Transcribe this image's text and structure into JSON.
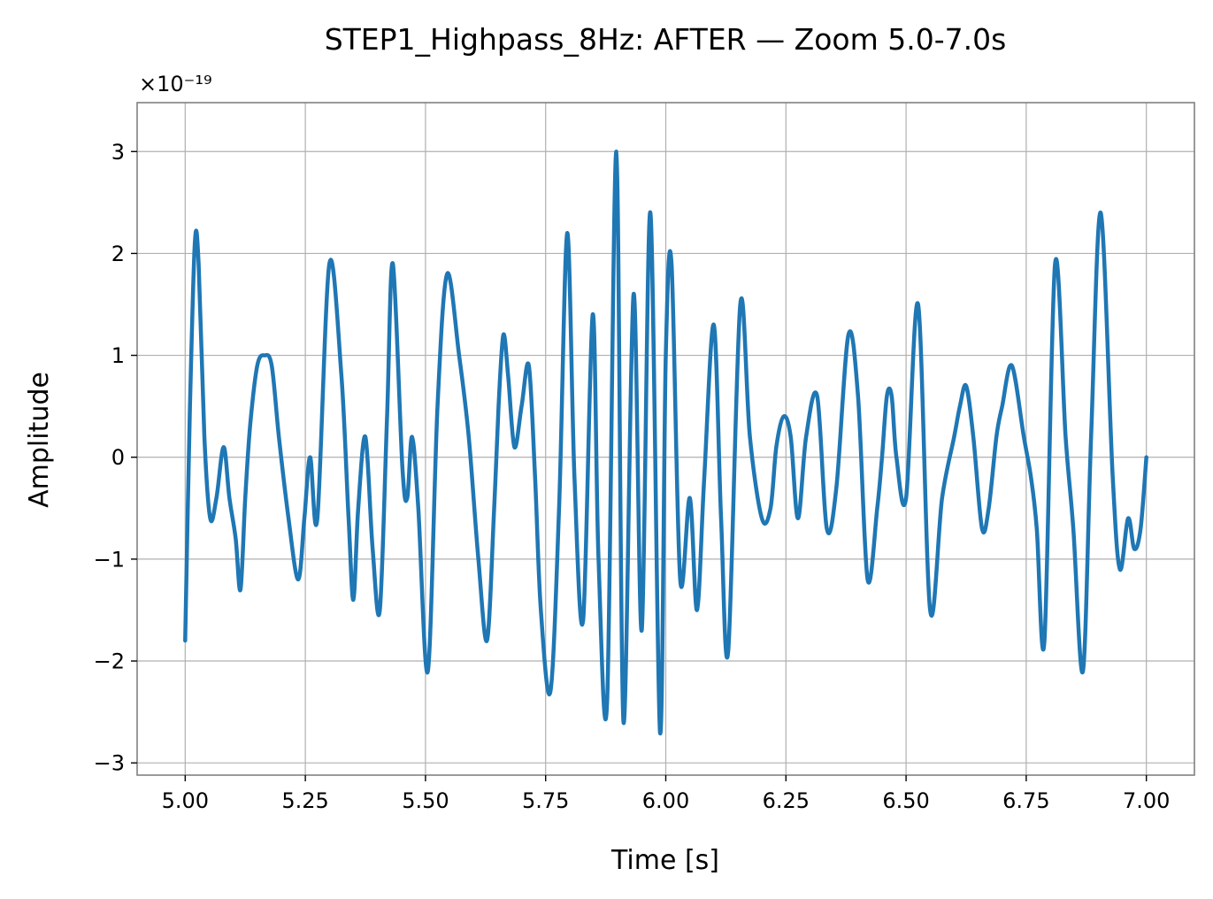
{
  "chart_data": {
    "type": "line",
    "title": "STEP1_Highpass_8Hz: AFTER — Zoom 5.0-7.0s",
    "xlabel": "Time [s]",
    "ylabel": "Amplitude",
    "y_offset_label": "×10⁻¹⁹",
    "y_scale": 1e-19,
    "xlim": [
      4.9,
      7.1
    ],
    "ylim": [
      -3.12,
      3.48
    ],
    "x_ticks": [
      5.0,
      5.25,
      5.5,
      5.75,
      6.0,
      6.25,
      6.5,
      6.75,
      7.0
    ],
    "x_tick_labels": [
      "5.00",
      "5.25",
      "5.50",
      "5.75",
      "6.00",
      "6.25",
      "6.50",
      "6.75",
      "7.00"
    ],
    "y_ticks": [
      -3,
      -2,
      -1,
      0,
      1,
      2,
      3
    ],
    "y_tick_labels": [
      "−3",
      "−2",
      "−1",
      "0",
      "1",
      "2",
      "3"
    ],
    "grid": true,
    "series": [
      {
        "color": "#1f77b4",
        "x": [
          5.0,
          5.01,
          5.02,
          5.028,
          5.04,
          5.052,
          5.065,
          5.08,
          5.092,
          5.105,
          5.115,
          5.125,
          5.135,
          5.15,
          5.165,
          5.18,
          5.195,
          5.215,
          5.235,
          5.248,
          5.26,
          5.275,
          5.3,
          5.325,
          5.34,
          5.35,
          5.36,
          5.375,
          5.39,
          5.405,
          5.42,
          5.432,
          5.452,
          5.462,
          5.472,
          5.485,
          5.505,
          5.525,
          5.545,
          5.57,
          5.59,
          5.61,
          5.628,
          5.642,
          5.652,
          5.662,
          5.672,
          5.685,
          5.7,
          5.715,
          5.728,
          5.74,
          5.76,
          5.778,
          5.795,
          5.81,
          5.828,
          5.848,
          5.86,
          5.878,
          5.897,
          5.912,
          5.933,
          5.95,
          5.968,
          5.988,
          6.0,
          6.012,
          6.03,
          6.05,
          6.065,
          6.08,
          6.1,
          6.115,
          6.13,
          6.155,
          6.175,
          6.2,
          6.218,
          6.23,
          6.245,
          6.26,
          6.275,
          6.292,
          6.315,
          6.335,
          6.355,
          6.38,
          6.4,
          6.42,
          6.44,
          6.45,
          6.46,
          6.47,
          6.48,
          6.5,
          6.525,
          6.55,
          6.575,
          6.6,
          6.612,
          6.625,
          6.64,
          6.658,
          6.672,
          6.688,
          6.7,
          6.72,
          6.745,
          6.76,
          6.772,
          6.788,
          6.81,
          6.832,
          6.848,
          6.868,
          6.885,
          6.905,
          6.93,
          6.945,
          6.962,
          6.975,
          6.988,
          7.0
        ],
        "y": [
          -1.8,
          0.5,
          2.1,
          1.9,
          0.2,
          -0.6,
          -0.4,
          0.1,
          -0.4,
          -0.8,
          -1.3,
          -0.4,
          0.3,
          0.9,
          1.0,
          0.9,
          0.2,
          -0.6,
          -1.2,
          -0.6,
          0.0,
          -0.6,
          1.9,
          0.8,
          -0.6,
          -1.4,
          -0.5,
          0.2,
          -0.9,
          -1.5,
          0.4,
          1.9,
          -0.1,
          -0.4,
          0.2,
          -0.5,
          -2.1,
          0.5,
          1.8,
          1.0,
          0.2,
          -1.0,
          -1.8,
          -0.6,
          0.5,
          1.2,
          0.8,
          0.1,
          0.5,
          0.9,
          -0.2,
          -1.5,
          -2.3,
          -0.5,
          2.2,
          -0.2,
          -1.6,
          1.4,
          -1.0,
          -2.4,
          3.0,
          -2.6,
          1.6,
          -1.7,
          2.4,
          -2.7,
          1.0,
          1.9,
          -1.2,
          -0.4,
          -1.5,
          -0.2,
          1.3,
          -0.6,
          -1.9,
          1.5,
          0.2,
          -0.6,
          -0.5,
          0.1,
          0.4,
          0.2,
          -0.6,
          0.2,
          0.6,
          -0.7,
          -0.3,
          1.2,
          0.6,
          -1.2,
          -0.5,
          0.0,
          0.6,
          0.6,
          0.0,
          -0.4,
          1.5,
          -1.5,
          -0.4,
          0.2,
          0.5,
          0.7,
          0.2,
          -0.7,
          -0.5,
          0.2,
          0.5,
          0.9,
          0.2,
          -0.2,
          -0.7,
          -1.8,
          1.9,
          0.2,
          -0.7,
          -2.1,
          0.2,
          2.4,
          -0.2,
          -1.1,
          -0.6,
          -0.9,
          -0.7,
          0.0
        ]
      }
    ]
  }
}
